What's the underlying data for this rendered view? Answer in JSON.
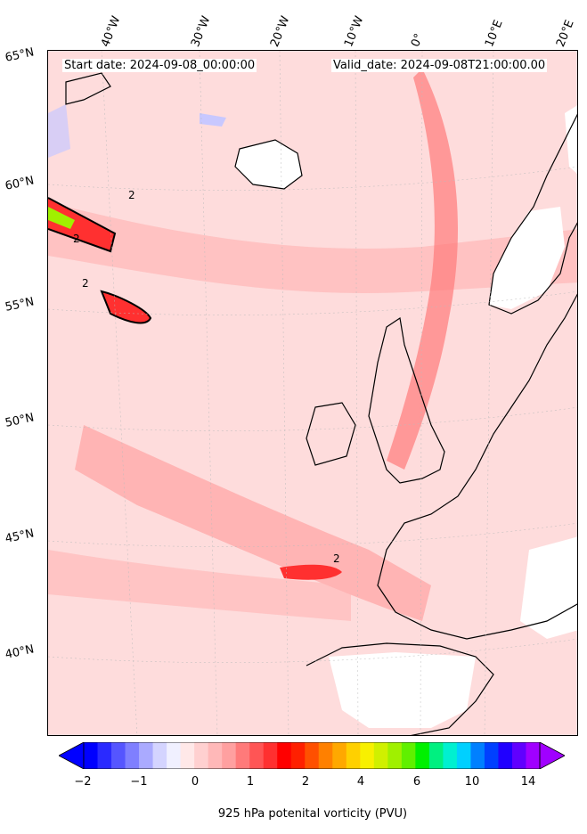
{
  "map": {
    "start_date": "Start date: 2024-09-08_00:00:00",
    "valid_date": "Valid_date: 2024-09-08T21:00:00.00",
    "contour_label": "2",
    "lon_labels": [
      "40°W",
      "30°W",
      "20°W",
      "10°W",
      "0°",
      "10°E",
      "20°E"
    ],
    "lat_labels": [
      "65°N",
      "60°N",
      "55°N",
      "50°N",
      "45°N",
      "40°N"
    ],
    "background_color": "#fde0e0",
    "coastline_color": "#000000"
  },
  "colorbar": {
    "title": "925 hPa potenital vorticity (PVU)",
    "tick_labels": [
      "−2",
      "−1",
      "0",
      "1",
      "2",
      "4",
      "6",
      "10",
      "14"
    ],
    "colors": [
      "#0000ff",
      "#2a2aff",
      "#5555ff",
      "#7f7fff",
      "#aaaaff",
      "#d4d4ff",
      "#f0f0ff",
      "#ffe8e8",
      "#ffd0d0",
      "#ffb8b8",
      "#ffa0a0",
      "#ff7a7a",
      "#ff5555",
      "#ff3030",
      "#ff0000",
      "#ff2000",
      "#ff5000",
      "#ff8000",
      "#ffa800",
      "#ffd000",
      "#f8f000",
      "#d0f000",
      "#a0f000",
      "#60f000",
      "#00f000",
      "#00f080",
      "#00f0d0",
      "#00d0ff",
      "#0080ff",
      "#0040ff",
      "#2000ff",
      "#6000ff",
      "#a000ff"
    ]
  }
}
